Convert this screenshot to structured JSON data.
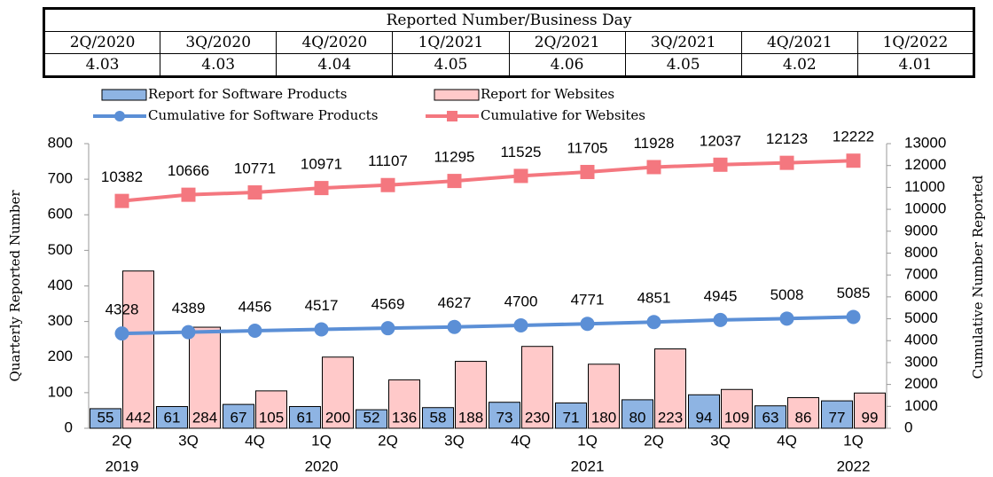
{
  "table": {
    "title": "Reported Number/Business Day",
    "header": [
      "2Q/2020",
      "3Q/2020",
      "4Q/2020",
      "1Q/2021",
      "2Q/2021",
      "3Q/2021",
      "4Q/2021",
      "1Q/2022"
    ],
    "row": [
      4.03,
      4.03,
      4.04,
      4.05,
      4.06,
      4.05,
      4.02,
      4.01
    ]
  },
  "chart_data": {
    "type": "bar",
    "categories": [
      "2Q",
      "3Q",
      "4Q",
      "1Q",
      "2Q",
      "3Q",
      "4Q",
      "1Q",
      "2Q",
      "3Q",
      "4Q",
      "1Q"
    ],
    "years": [
      "2019",
      null,
      null,
      "2020",
      null,
      null,
      null,
      "2021",
      null,
      null,
      null,
      "2022"
    ],
    "y_label": "Quarterly Reported Number",
    "y2_label": "Cumulative Number Reported",
    "ylim": [
      0,
      800
    ],
    "yticks": [
      0,
      100,
      200,
      300,
      400,
      500,
      600,
      700,
      800
    ],
    "y2lim": [
      0,
      13000
    ],
    "y2ticks": [
      0,
      1000,
      2000,
      3000,
      4000,
      5000,
      6000,
      7000,
      8000,
      9000,
      10000,
      11000,
      12000,
      13000
    ],
    "series": [
      {
        "name": "Report for Software Products",
        "type": "bar",
        "color": "#8eb4e3",
        "values": [
          55,
          61,
          67,
          61,
          52,
          58,
          73,
          71,
          80,
          94,
          63,
          77
        ]
      },
      {
        "name": "Report for Websites",
        "type": "bar",
        "color": "#ffc9c9",
        "values": [
          442,
          284,
          105,
          200,
          136,
          188,
          230,
          180,
          223,
          109,
          86,
          99
        ]
      },
      {
        "name": "Cumulative for Software Products",
        "type": "line",
        "axis": "y2",
        "color": "#5b8fd6",
        "values": [
          4328,
          4389,
          4456,
          4517,
          4569,
          4627,
          4700,
          4771,
          4851,
          4945,
          5008,
          5085
        ]
      },
      {
        "name": "Cumulative for Websites",
        "type": "line",
        "axis": "y2",
        "color": "#f4777f",
        "values": [
          10382,
          10666,
          10771,
          10971,
          11107,
          11295,
          11525,
          11705,
          11928,
          12037,
          12123,
          12222
        ]
      }
    ]
  }
}
